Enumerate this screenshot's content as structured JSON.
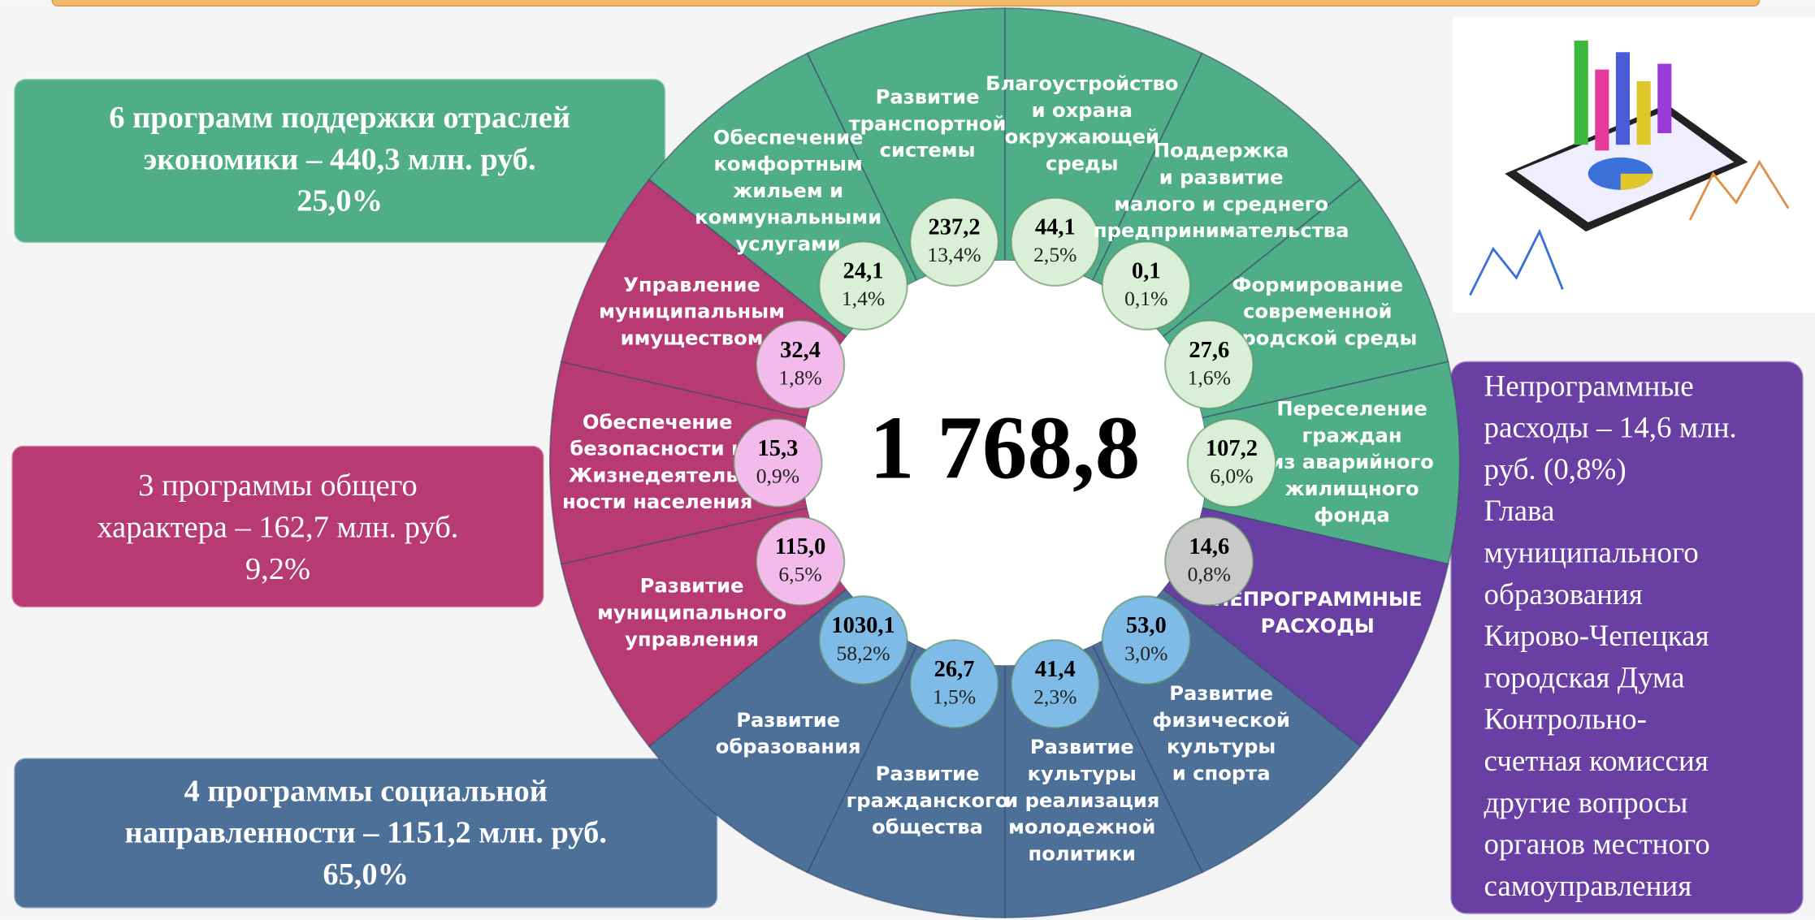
{
  "center_total": "1 768,8",
  "summary_boxes": [
    {
      "lines": [
        "6 программ поддержки отраслей",
        "экономики – 440,3 млн. руб.",
        "25,0%"
      ],
      "color": "#4fae88"
    },
    {
      "lines": [
        "3 программы общего",
        "характера – 162,7 млн. руб.",
        "9,2%"
      ],
      "color": "#b83a72"
    },
    {
      "lines": [
        "4 программы социальной",
        "направленности – 1151,2 млн. руб.",
        "65,0%"
      ],
      "color": "#4d7099"
    }
  ],
  "side_note": {
    "lines": [
      "Непрограммные",
      "расходы – 14,6 млн.",
      "руб. (0,8%)",
      " Глава",
      "муниципального",
      "образования",
      " Кирово-Чепецкая",
      "городская Дума",
      " Контрольно-",
      "счетная комиссия",
      " другие вопросы",
      "органов местного",
      "самоуправления"
    ],
    "color": "#6a3fa3"
  },
  "segments": [
    {
      "label": [
        "Благоустройство",
        "и охрана",
        "окружающей",
        "среды"
      ],
      "amount": "44,1",
      "share": "2,5%",
      "color": "#4fae88",
      "circle_color": "#d9f0d6"
    },
    {
      "label": [
        "Поддержка",
        "и развитие",
        "малого и среднего",
        "предпринимательства"
      ],
      "amount": "0,1",
      "share": "0,1%",
      "color": "#4fae88",
      "circle_color": "#d9f0d6"
    },
    {
      "label": [
        "Формирование",
        "современной",
        "городской среды"
      ],
      "amount": "27,6",
      "share": "1,6%",
      "color": "#4fae88",
      "circle_color": "#d9f0d6"
    },
    {
      "label": [
        "Переселение",
        "граждан",
        "из аварийного",
        "жилищного",
        "фонда"
      ],
      "amount": "107,2",
      "share": "6,0%",
      "color": "#4fae88",
      "circle_color": "#d9f0d6"
    },
    {
      "label": [
        "НЕПРОГРАММНЫЕ",
        "РАСХОДЫ"
      ],
      "amount": "14,6",
      "share": "0,8%",
      "color": "#6a3fa3",
      "circle_color": "#c9c9c9"
    },
    {
      "label": [
        "Развитие",
        "физической",
        "культуры",
        "и спорта"
      ],
      "amount": "53,0",
      "share": "3,0%",
      "color": "#4d7099",
      "circle_color": "#7ebbe6"
    },
    {
      "label": [
        "Развитие",
        "культуры",
        "и реализация",
        "молодежной",
        "политики"
      ],
      "amount": "41,4",
      "share": "2,3%",
      "color": "#4d7099",
      "circle_color": "#7ebbe6"
    },
    {
      "label": [
        "Развитие",
        "гражданского",
        "общества"
      ],
      "amount": "26,7",
      "share": "1,5%",
      "color": "#4d7099",
      "circle_color": "#7ebbe6"
    },
    {
      "label": [
        "Развитие",
        "образования"
      ],
      "amount": "1030,1",
      "share": "58,2%",
      "color": "#4d7099",
      "circle_color": "#7ebbe6"
    },
    {
      "label": [
        "Развитие",
        "муниципального",
        "управления"
      ],
      "amount": "115,0",
      "share": "6,5%",
      "color": "#b83a72",
      "circle_color": "#f2bbec"
    },
    {
      "label": [
        "Обеспечение",
        "безопасности и",
        "Жизнедеятель-",
        "ности населения"
      ],
      "amount": "15,3",
      "share": "0,9%",
      "color": "#b83a72",
      "circle_color": "#f2bbec"
    },
    {
      "label": [
        "Управление",
        "муниципальным",
        "имуществом"
      ],
      "amount": "32,4",
      "share": "1,8%",
      "color": "#b83a72",
      "circle_color": "#f2bbec"
    },
    {
      "label": [
        "Обеспечение",
        "комфортным",
        "жильем и",
        "коммунальными",
        "услугами"
      ],
      "amount": "24,1",
      "share": "1,4%",
      "color": "#4fae88",
      "circle_color": "#d9f0d6"
    },
    {
      "label": [
        "Развитие",
        "транспортной",
        "системы"
      ],
      "amount": "237,2",
      "share": "13,4%",
      "color": "#4fae88",
      "circle_color": "#d9f0d6"
    }
  ]
}
